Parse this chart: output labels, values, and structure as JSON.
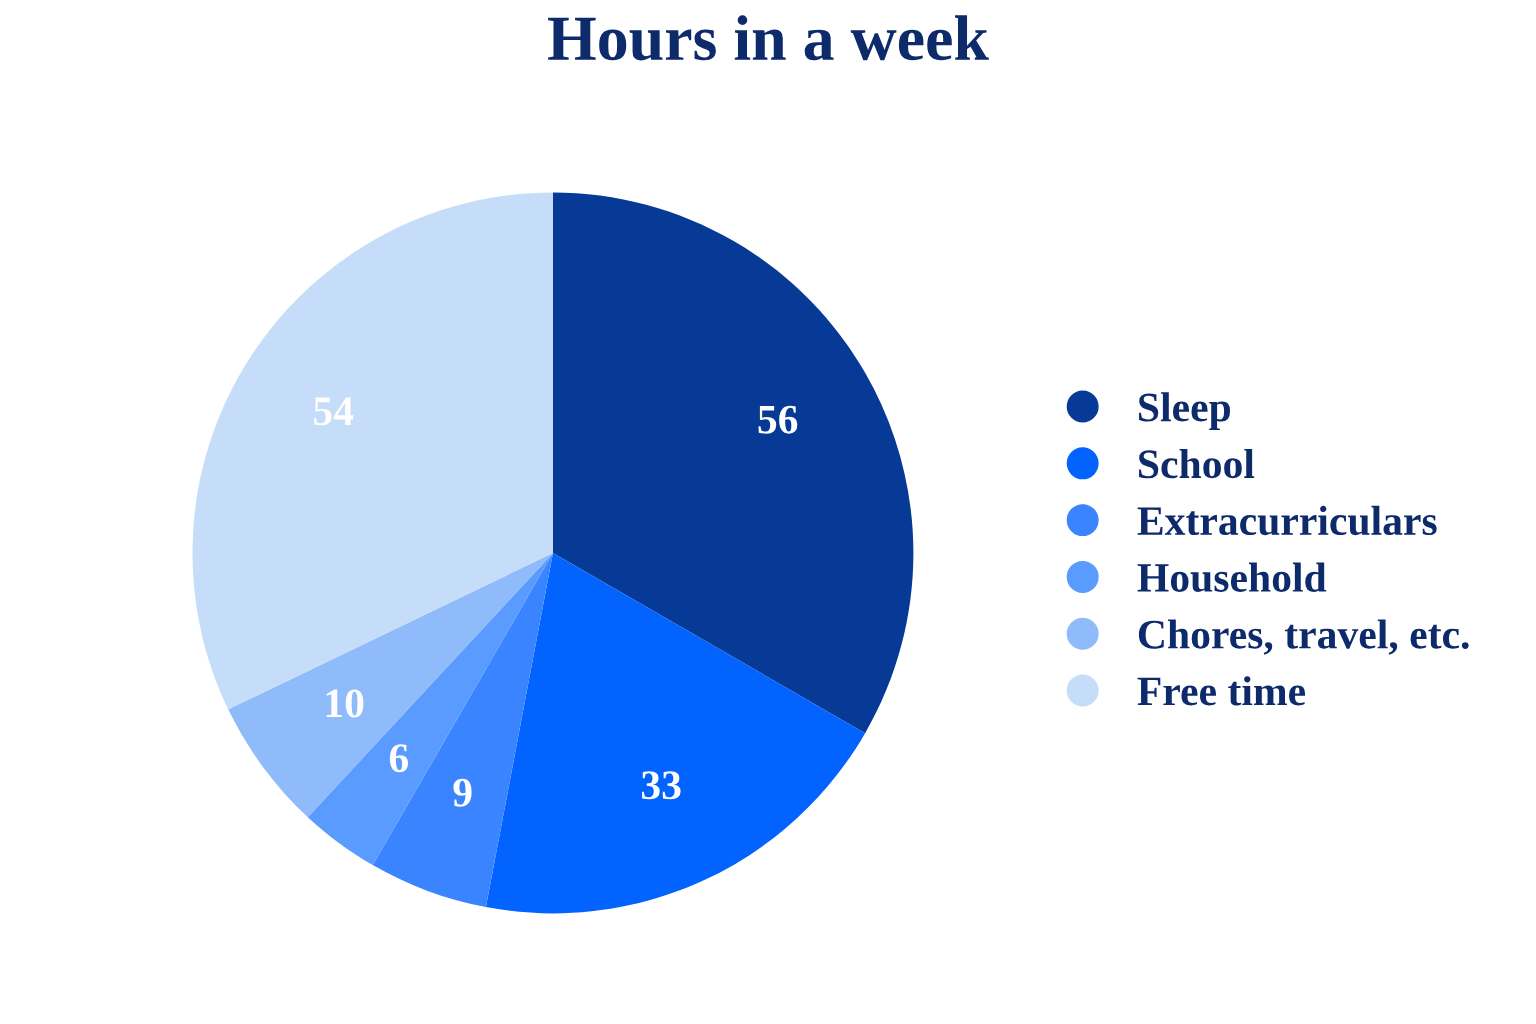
{
  "chart_data": {
    "type": "pie",
    "title": "Hours in a week",
    "categories": [
      "Sleep",
      "School",
      "Extracurriculars",
      "Household",
      "Chores, travel, etc.",
      "Free time"
    ],
    "values": [
      56,
      33,
      9,
      6,
      10,
      54
    ],
    "colors": [
      "#063a96",
      "#0263ff",
      "#3a85ff",
      "#5a9bff",
      "#90bbfa",
      "#c5ddf9"
    ],
    "data_labels": true,
    "legend": "right"
  }
}
